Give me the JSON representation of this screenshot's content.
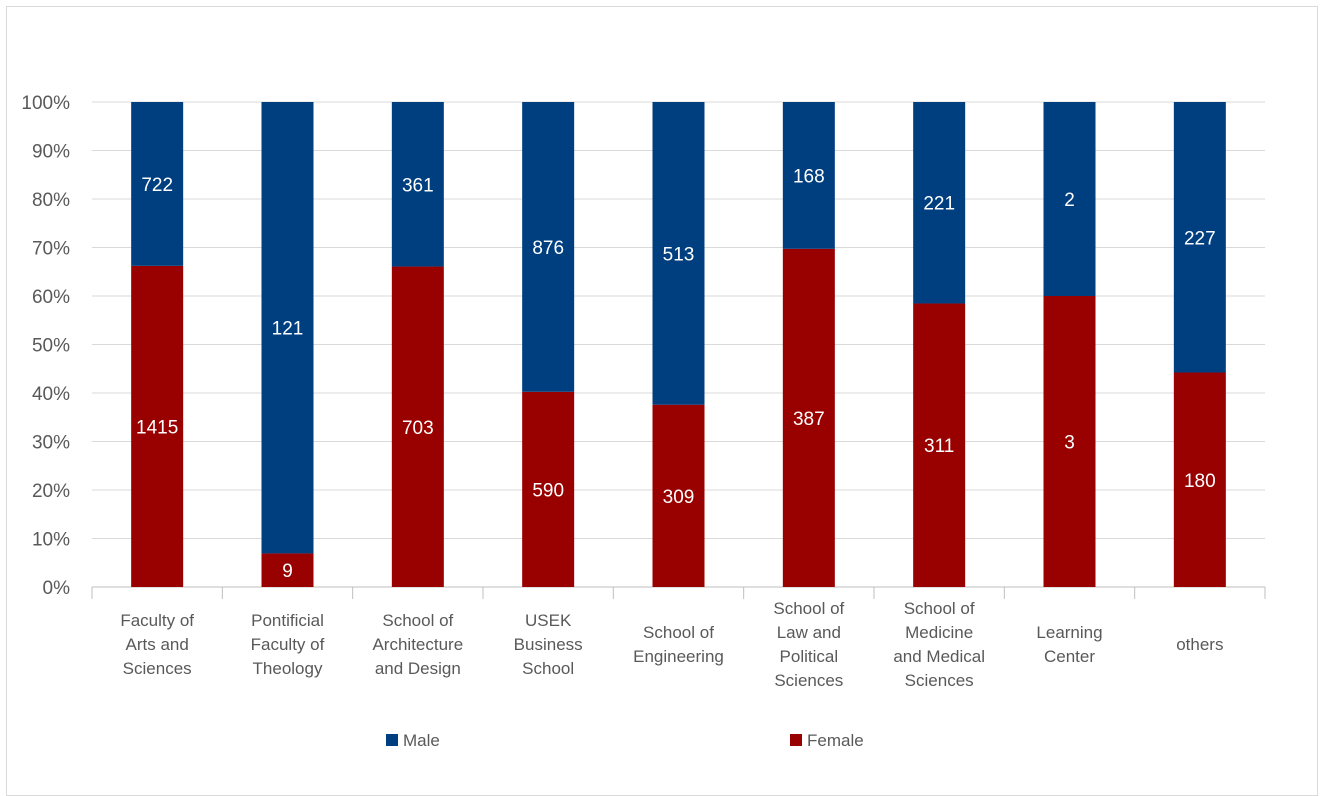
{
  "chart_data": {
    "type": "bar",
    "stacked": "percent",
    "categories": [
      [
        "Faculty of",
        "Arts and",
        "Sciences"
      ],
      [
        "Pontificial",
        "Faculty of",
        "Theology"
      ],
      [
        "School of",
        "Architecture",
        "and Design"
      ],
      [
        "USEK",
        "Business",
        "School"
      ],
      [
        "School of",
        "Engineering"
      ],
      [
        "School of",
        "Law and",
        "Political",
        "Sciences"
      ],
      [
        "School of",
        "Medicine",
        "and Medical",
        "Sciences"
      ],
      [
        "Learning",
        "Center"
      ],
      [
        "others"
      ]
    ],
    "series": [
      {
        "name": "Female",
        "color": "#990000",
        "values": [
          1415,
          9,
          703,
          590,
          309,
          387,
          311,
          3,
          180
        ]
      },
      {
        "name": "Male",
        "color": "#003f7f",
        "values": [
          722,
          121,
          361,
          876,
          513,
          168,
          221,
          2,
          227
        ]
      }
    ],
    "y_ticks": [
      "0%",
      "10%",
      "20%",
      "30%",
      "40%",
      "50%",
      "60%",
      "70%",
      "80%",
      "90%",
      "100%"
    ],
    "ylim": [
      0,
      100
    ],
    "grid": true,
    "legend": {
      "position": "bottom",
      "items": [
        {
          "name": "Male",
          "color": "#003f7f"
        },
        {
          "name": "Female",
          "color": "#990000"
        }
      ]
    }
  }
}
